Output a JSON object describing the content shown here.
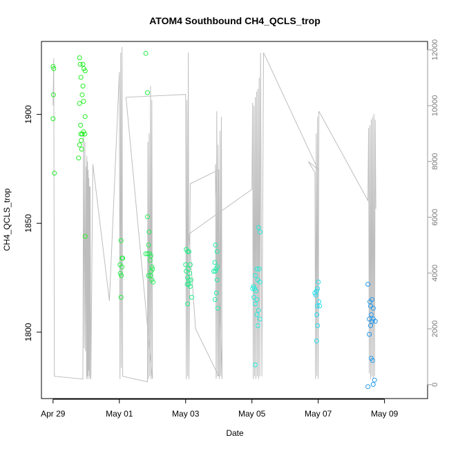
{
  "chart_data": {
    "type": "scatter",
    "title": "ATOM4 Southbound CH4_QCLS_trop",
    "xlabel": "Date",
    "ylabel": "CH4_QCLS_trop",
    "x_unit": "days since Apr 29",
    "xlim": [
      -0.35,
      11.3
    ],
    "ylim": [
      1769.5,
      1933.5
    ],
    "y_ticks": [
      1800,
      1850,
      1900
    ],
    "x_ticks": [
      {
        "value": 0,
        "label": "Apr 29"
      },
      {
        "value": 2,
        "label": "May 01"
      },
      {
        "value": 4,
        "label": "May 03"
      },
      {
        "value": 6,
        "label": "May 05"
      },
      {
        "value": 8,
        "label": "May 07"
      },
      {
        "value": 10,
        "label": "May 09"
      }
    ],
    "right_axis": {
      "label": "",
      "ylim": [
        -500,
        12300
      ],
      "ticks": [
        0,
        2000,
        4000,
        6000,
        8000,
        10000,
        12000
      ]
    },
    "series": [
      {
        "name": "CH4_QCLS_trop",
        "points": [
          {
            "x": 0.0,
            "y": 1922,
            "c": "#22ee22"
          },
          {
            "x": 0.02,
            "y": 1921,
            "c": "#22ee22"
          },
          {
            "x": 0.01,
            "y": 1909,
            "c": "#22ee22"
          },
          {
            "x": 0.0,
            "y": 1898,
            "c": "#22ee22"
          },
          {
            "x": 0.04,
            "y": 1873,
            "c": "#22ee22"
          },
          {
            "x": 0.8,
            "y": 1926,
            "c": "#22ee22"
          },
          {
            "x": 0.82,
            "y": 1923,
            "c": "#22ee22"
          },
          {
            "x": 0.9,
            "y": 1923,
            "c": "#22ee22"
          },
          {
            "x": 0.93,
            "y": 1921,
            "c": "#22ee22"
          },
          {
            "x": 0.97,
            "y": 1920,
            "c": "#22ee22"
          },
          {
            "x": 0.84,
            "y": 1917,
            "c": "#22ee22"
          },
          {
            "x": 0.9,
            "y": 1913,
            "c": "#22ee22"
          },
          {
            "x": 0.88,
            "y": 1909,
            "c": "#22ee22"
          },
          {
            "x": 0.92,
            "y": 1906,
            "c": "#22ee22"
          },
          {
            "x": 0.8,
            "y": 1905,
            "c": "#22ee22"
          },
          {
            "x": 0.97,
            "y": 1899,
            "c": "#22ee22"
          },
          {
            "x": 0.83,
            "y": 1895,
            "c": "#22ee22"
          },
          {
            "x": 0.84,
            "y": 1891,
            "c": "#22ee22"
          },
          {
            "x": 0.88,
            "y": 1891,
            "c": "#22ee22"
          },
          {
            "x": 0.92,
            "y": 1892,
            "c": "#22ee22"
          },
          {
            "x": 0.96,
            "y": 1891,
            "c": "#22ee22"
          },
          {
            "x": 0.85,
            "y": 1888,
            "c": "#22ee22"
          },
          {
            "x": 0.8,
            "y": 1886,
            "c": "#22ee22"
          },
          {
            "x": 0.86,
            "y": 1884,
            "c": "#22ee22"
          },
          {
            "x": 0.77,
            "y": 1880,
            "c": "#22ee22"
          },
          {
            "x": 0.97,
            "y": 1844,
            "c": "#22ee22"
          },
          {
            "x": 2.05,
            "y": 1842,
            "c": "#22ee44"
          },
          {
            "x": 2.08,
            "y": 1834,
            "c": "#22ee44"
          },
          {
            "x": 2.1,
            "y": 1834,
            "c": "#22ee44"
          },
          {
            "x": 2.02,
            "y": 1831,
            "c": "#22ee44"
          },
          {
            "x": 2.08,
            "y": 1830,
            "c": "#22ee44"
          },
          {
            "x": 2.03,
            "y": 1827,
            "c": "#22ee44"
          },
          {
            "x": 2.06,
            "y": 1826,
            "c": "#22ee44"
          },
          {
            "x": 2.05,
            "y": 1816,
            "c": "#22ee44"
          },
          {
            "x": 2.8,
            "y": 1928,
            "c": "#22ee44"
          },
          {
            "x": 2.85,
            "y": 1910,
            "c": "#22ee44"
          },
          {
            "x": 2.85,
            "y": 1853,
            "c": "#22ee55"
          },
          {
            "x": 2.9,
            "y": 1846,
            "c": "#22ee55"
          },
          {
            "x": 2.88,
            "y": 1840,
            "c": "#22ee55"
          },
          {
            "x": 2.8,
            "y": 1836,
            "c": "#22ee55"
          },
          {
            "x": 2.86,
            "y": 1836,
            "c": "#22ee55"
          },
          {
            "x": 2.92,
            "y": 1836,
            "c": "#22ee55"
          },
          {
            "x": 2.95,
            "y": 1835,
            "c": "#22ee55"
          },
          {
            "x": 2.93,
            "y": 1833,
            "c": "#22ee55"
          },
          {
            "x": 2.98,
            "y": 1830,
            "c": "#22ee55"
          },
          {
            "x": 2.96,
            "y": 1828,
            "c": "#22ee55"
          },
          {
            "x": 3.0,
            "y": 1829,
            "c": "#22ee55"
          },
          {
            "x": 2.88,
            "y": 1826,
            "c": "#22ee55"
          },
          {
            "x": 2.95,
            "y": 1826,
            "c": "#22ee55"
          },
          {
            "x": 2.98,
            "y": 1824,
            "c": "#22ee55"
          },
          {
            "x": 3.02,
            "y": 1823,
            "c": "#22ee55"
          },
          {
            "x": 4.02,
            "y": 1838,
            "c": "#22ee88"
          },
          {
            "x": 4.06,
            "y": 1837,
            "c": "#22ee88"
          },
          {
            "x": 4.1,
            "y": 1837,
            "c": "#22ee88"
          },
          {
            "x": 4.0,
            "y": 1831,
            "c": "#22ee88"
          },
          {
            "x": 4.14,
            "y": 1831,
            "c": "#22ee88"
          },
          {
            "x": 4.02,
            "y": 1828,
            "c": "#22ee88"
          },
          {
            "x": 4.08,
            "y": 1829,
            "c": "#22ee88"
          },
          {
            "x": 4.12,
            "y": 1827,
            "c": "#22ee88"
          },
          {
            "x": 4.06,
            "y": 1825,
            "c": "#22ee88"
          },
          {
            "x": 4.1,
            "y": 1824,
            "c": "#22ee88"
          },
          {
            "x": 4.16,
            "y": 1824,
            "c": "#22ee88"
          },
          {
            "x": 4.05,
            "y": 1822,
            "c": "#22ee88"
          },
          {
            "x": 4.1,
            "y": 1822,
            "c": "#22ee88"
          },
          {
            "x": 4.14,
            "y": 1821,
            "c": "#22ee88"
          },
          {
            "x": 4.18,
            "y": 1816,
            "c": "#22ee88"
          },
          {
            "x": 4.06,
            "y": 1813,
            "c": "#22ee88"
          },
          {
            "x": 4.9,
            "y": 1840,
            "c": "#22eeaa"
          },
          {
            "x": 4.95,
            "y": 1837,
            "c": "#22eeaa"
          },
          {
            "x": 4.88,
            "y": 1832,
            "c": "#22eeaa"
          },
          {
            "x": 4.96,
            "y": 1830,
            "c": "#22eeaa"
          },
          {
            "x": 4.92,
            "y": 1829,
            "c": "#22eeaa"
          },
          {
            "x": 4.85,
            "y": 1828,
            "c": "#22eeaa"
          },
          {
            "x": 4.9,
            "y": 1828,
            "c": "#22eeaa"
          },
          {
            "x": 4.95,
            "y": 1824,
            "c": "#22eeaa"
          },
          {
            "x": 4.93,
            "y": 1818,
            "c": "#22eeaa"
          },
          {
            "x": 4.89,
            "y": 1815,
            "c": "#22eeaa"
          },
          {
            "x": 4.97,
            "y": 1811,
            "c": "#22eeaa"
          },
          {
            "x": 6.2,
            "y": 1848,
            "c": "#22eedd"
          },
          {
            "x": 6.25,
            "y": 1846,
            "c": "#22eedd"
          },
          {
            "x": 6.15,
            "y": 1829,
            "c": "#22eedd"
          },
          {
            "x": 6.22,
            "y": 1829,
            "c": "#22eedd"
          },
          {
            "x": 6.1,
            "y": 1826,
            "c": "#22eedd"
          },
          {
            "x": 6.18,
            "y": 1824,
            "c": "#22eedd"
          },
          {
            "x": 6.24,
            "y": 1823,
            "c": "#22eedd"
          },
          {
            "x": 6.02,
            "y": 1820,
            "c": "#22eedd"
          },
          {
            "x": 6.05,
            "y": 1821,
            "c": "#22eedd"
          },
          {
            "x": 6.08,
            "y": 1820,
            "c": "#22eedd"
          },
          {
            "x": 6.12,
            "y": 1819,
            "c": "#22eedd"
          },
          {
            "x": 6.06,
            "y": 1816,
            "c": "#22eedd"
          },
          {
            "x": 6.15,
            "y": 1815,
            "c": "#22eedd"
          },
          {
            "x": 6.1,
            "y": 1813,
            "c": "#22eedd"
          },
          {
            "x": 6.2,
            "y": 1810,
            "c": "#22eedd"
          },
          {
            "x": 6.15,
            "y": 1808,
            "c": "#22eedd"
          },
          {
            "x": 6.24,
            "y": 1806,
            "c": "#22eedd"
          },
          {
            "x": 6.18,
            "y": 1803,
            "c": "#22eedd"
          },
          {
            "x": 6.1,
            "y": 1785,
            "c": "#22eedd"
          },
          {
            "x": 8.0,
            "y": 1823,
            "c": "#22ddee"
          },
          {
            "x": 7.98,
            "y": 1820,
            "c": "#22ddee"
          },
          {
            "x": 7.95,
            "y": 1819,
            "c": "#22ddee"
          },
          {
            "x": 7.9,
            "y": 1818,
            "c": "#22ddee"
          },
          {
            "x": 7.93,
            "y": 1817,
            "c": "#22ddee"
          },
          {
            "x": 8.02,
            "y": 1814,
            "c": "#22ddee"
          },
          {
            "x": 7.97,
            "y": 1812,
            "c": "#22ddee"
          },
          {
            "x": 8.04,
            "y": 1812,
            "c": "#22ddee"
          },
          {
            "x": 7.96,
            "y": 1808,
            "c": "#22ddee"
          },
          {
            "x": 7.98,
            "y": 1803,
            "c": "#22ddee"
          },
          {
            "x": 7.95,
            "y": 1796,
            "c": "#22ddee"
          },
          {
            "x": 9.5,
            "y": 1822,
            "c": "#2299ee"
          },
          {
            "x": 9.56,
            "y": 1814,
            "c": "#2299ee"
          },
          {
            "x": 9.62,
            "y": 1815,
            "c": "#2299ee"
          },
          {
            "x": 9.58,
            "y": 1812,
            "c": "#2299ee"
          },
          {
            "x": 9.66,
            "y": 1811,
            "c": "#2299ee"
          },
          {
            "x": 9.6,
            "y": 1808,
            "c": "#2299ee"
          },
          {
            "x": 9.54,
            "y": 1806,
            "c": "#2299ee"
          },
          {
            "x": 9.62,
            "y": 1805,
            "c": "#2299ee"
          },
          {
            "x": 9.66,
            "y": 1806,
            "c": "#2299ee"
          },
          {
            "x": 9.72,
            "y": 1805,
            "c": "#2299ee"
          },
          {
            "x": 9.58,
            "y": 1803,
            "c": "#2299ee"
          },
          {
            "x": 9.54,
            "y": 1799,
            "c": "#2299ee"
          },
          {
            "x": 9.6,
            "y": 1788,
            "c": "#2299ee"
          },
          {
            "x": 9.64,
            "y": 1787,
            "c": "#2299ee"
          },
          {
            "x": 9.7,
            "y": 1778,
            "c": "#2299ee"
          },
          {
            "x": 9.66,
            "y": 1776,
            "c": "#2299ee"
          },
          {
            "x": 9.5,
            "y": 1775,
            "c": "#2299ee"
          }
        ]
      }
    ],
    "altitude_track": {
      "color": "#bdbdbd",
      "points": [
        [
          0.0,
          10000
        ],
        [
          0.02,
          11700
        ],
        [
          0.04,
          300
        ],
        [
          0.9,
          200
        ],
        [
          0.92,
          9000
        ],
        [
          0.94,
          1300
        ],
        [
          0.96,
          8700
        ],
        [
          0.98,
          1200
        ],
        [
          1.0,
          7800
        ],
        [
          1.01,
          200
        ],
        [
          1.02,
          8200
        ],
        [
          1.03,
          300
        ],
        [
          1.04,
          8000
        ],
        [
          1.05,
          200
        ],
        [
          1.06,
          7700
        ],
        [
          1.07,
          500
        ],
        [
          1.08,
          7400
        ],
        [
          1.09,
          300
        ],
        [
          1.1,
          7100
        ],
        [
          1.11,
          200
        ],
        [
          1.12,
          7100
        ],
        [
          1.14,
          200
        ],
        [
          1.2,
          7900
        ],
        [
          1.7,
          3000
        ],
        [
          2.0,
          11200
        ],
        [
          2.02,
          200
        ],
        [
          2.04,
          11900
        ],
        [
          2.06,
          600
        ],
        [
          2.08,
          12100
        ],
        [
          2.1,
          300
        ],
        [
          2.85,
          100
        ],
        [
          2.86,
          8700
        ],
        [
          2.88,
          200
        ],
        [
          2.9,
          9000
        ],
        [
          2.92,
          300
        ],
        [
          2.94,
          10700
        ],
        [
          2.96,
          200
        ],
        [
          2.98,
          10200
        ],
        [
          3.0,
          200
        ],
        [
          2.2,
          10300
        ],
        [
          4.0,
          10400
        ],
        [
          4.02,
          200
        ],
        [
          4.04,
          10200
        ],
        [
          4.06,
          300
        ],
        [
          4.08,
          11900
        ],
        [
          4.1,
          200
        ],
        [
          4.14,
          7200
        ],
        [
          5.0,
          7700
        ],
        [
          5.02,
          200
        ],
        [
          5.04,
          9100
        ],
        [
          5.06,
          300
        ],
        [
          5.08,
          9600
        ],
        [
          5.1,
          200
        ],
        [
          4.9,
          7900
        ],
        [
          4.92,
          200
        ],
        [
          4.94,
          9800
        ],
        [
          4.96,
          300
        ],
        [
          4.98,
          8600
        ],
        [
          5.0,
          300
        ],
        [
          4.3,
          2000
        ],
        [
          4.1,
          5400
        ],
        [
          6.0,
          7000
        ],
        [
          6.02,
          10100
        ],
        [
          6.04,
          200
        ],
        [
          6.06,
          10000
        ],
        [
          6.08,
          300
        ],
        [
          6.1,
          10300
        ],
        [
          6.12,
          200
        ],
        [
          6.14,
          10500
        ],
        [
          6.16,
          300
        ],
        [
          6.18,
          10600
        ],
        [
          6.2,
          200
        ],
        [
          6.22,
          11000
        ],
        [
          6.24,
          300
        ],
        [
          6.26,
          11900
        ],
        [
          6.3,
          300
        ],
        [
          6.35,
          11900
        ],
        [
          8.0,
          7700
        ],
        [
          7.7,
          8000
        ],
        [
          7.9,
          7600
        ],
        [
          7.92,
          200
        ],
        [
          7.94,
          9000
        ],
        [
          7.96,
          300
        ],
        [
          7.98,
          9600
        ],
        [
          8.0,
          200
        ],
        [
          8.02,
          9800
        ],
        [
          9.5,
          6600
        ],
        [
          9.52,
          9200
        ],
        [
          9.54,
          400
        ],
        [
          9.56,
          9300
        ],
        [
          9.58,
          200
        ],
        [
          9.6,
          9500
        ],
        [
          9.62,
          300
        ],
        [
          9.64,
          9600
        ],
        [
          9.66,
          200
        ],
        [
          9.68,
          9700
        ],
        [
          9.7,
          300
        ],
        [
          9.72,
          9500
        ],
        [
          9.74,
          6300
        ]
      ]
    }
  }
}
